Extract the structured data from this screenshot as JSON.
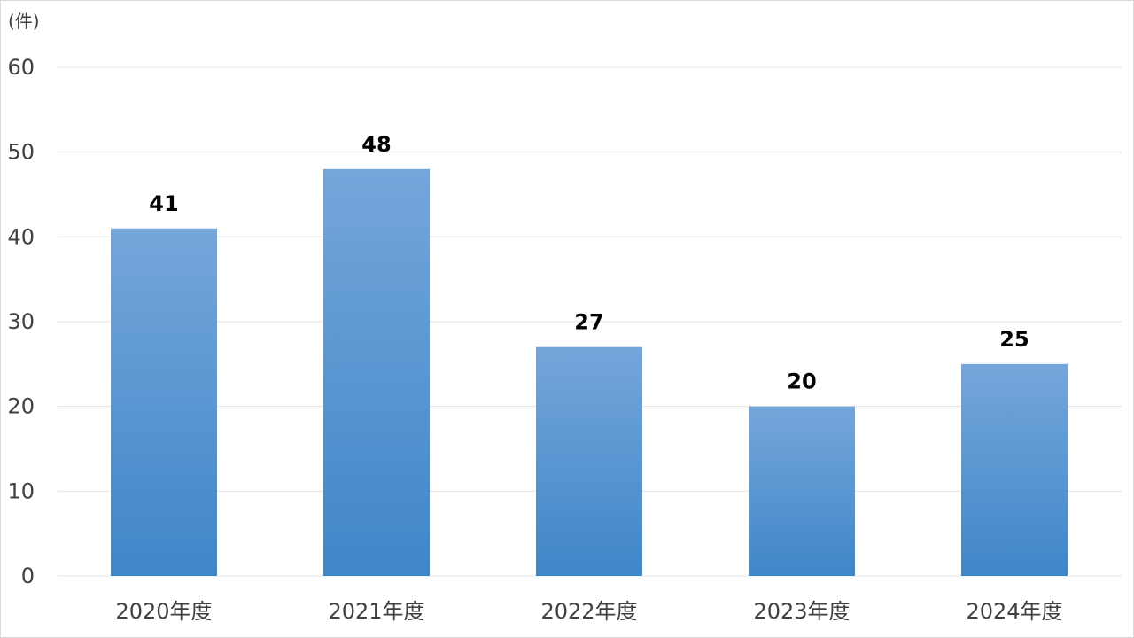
{
  "chart_data": {
    "type": "bar",
    "y_unit": "(件)",
    "categories": [
      "2020年度",
      "2021年度",
      "2022年度",
      "2023年度",
      "2024年度"
    ],
    "values": [
      41,
      48,
      27,
      20,
      25
    ],
    "ylim": [
      0,
      60
    ],
    "yticks": [
      0,
      10,
      20,
      30,
      40,
      50,
      60
    ],
    "grid": true,
    "bar_color_top": "#75A6DA",
    "bar_color_bottom": "#3F86C8",
    "gridline_color": "#E3E3E3"
  }
}
